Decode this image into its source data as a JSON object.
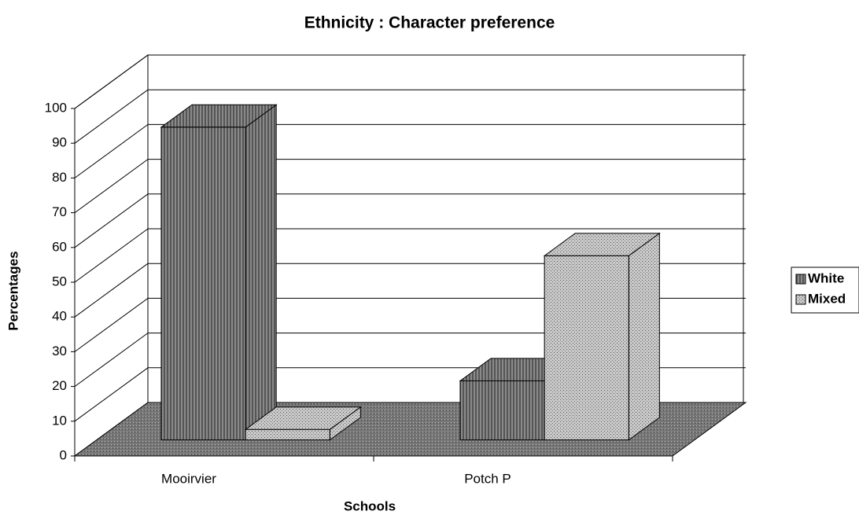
{
  "chart_data": {
    "type": "bar3d",
    "title": "Ethnicity : Character preference",
    "xlabel": "Schools",
    "ylabel": "Percentages",
    "categories": [
      "Mooirvier",
      "Potch P"
    ],
    "series": [
      {
        "name": "White",
        "color": "#8a8a8a",
        "values": [
          90,
          17
        ]
      },
      {
        "name": "Mixed",
        "color": "#c8c8c8",
        "values": [
          3,
          53
        ]
      }
    ],
    "ylim": [
      0,
      100
    ],
    "yticks": [
      0,
      10,
      20,
      30,
      40,
      50,
      60,
      70,
      80,
      90,
      100
    ],
    "grid": true,
    "legend": "right"
  }
}
